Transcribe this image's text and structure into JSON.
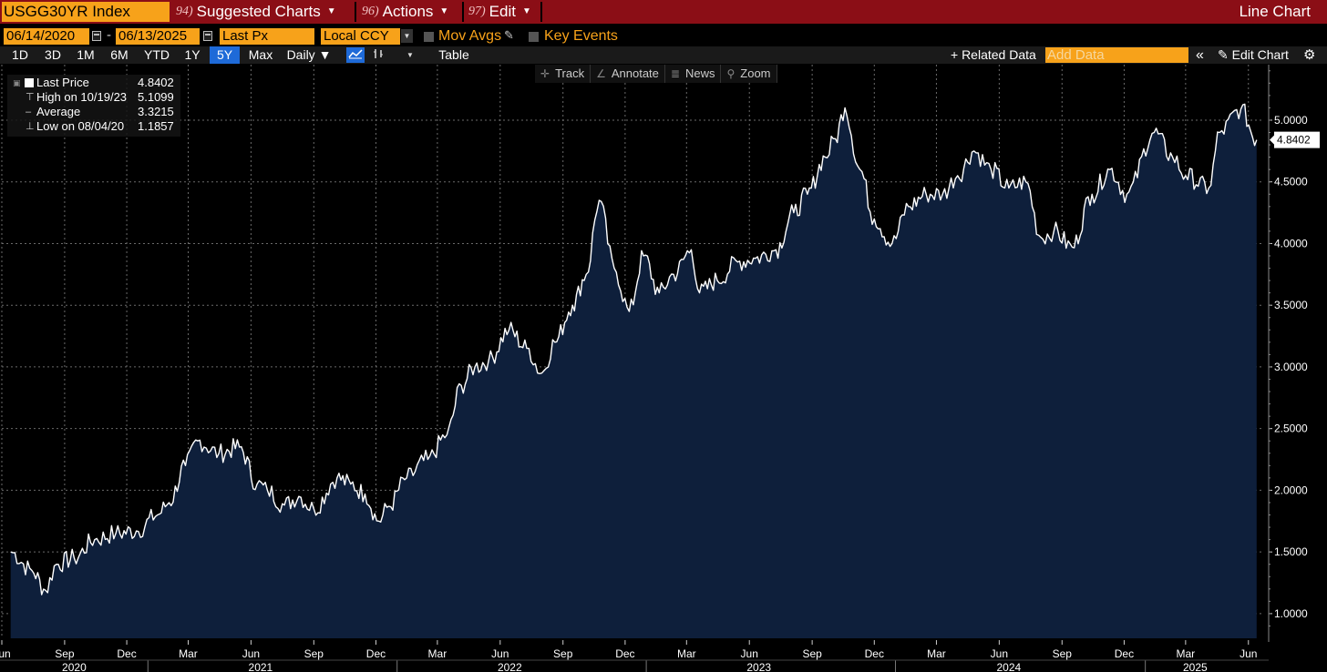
{
  "header": {
    "ticker": "USGG30YR Index",
    "menus": [
      {
        "num": "94)",
        "label": "Suggested Charts"
      },
      {
        "num": "96)",
        "label": "Actions"
      },
      {
        "num": "97)",
        "label": "Edit"
      }
    ],
    "window_title": "Line Chart"
  },
  "controls": {
    "start_date": "06/14/2020",
    "end_date": "06/13/2025",
    "date_sep": "-",
    "field": "Last Px",
    "currency": "Local CCY",
    "mov_avgs": "Mov Avgs",
    "key_events": "Key Events"
  },
  "periods": [
    "1D",
    "3D",
    "1M",
    "6M",
    "YTD",
    "1Y",
    "5Y",
    "Max"
  ],
  "active_period": "5Y",
  "frequency": "Daily ▼",
  "table_label": "Table",
  "related_data": "+ Related Data",
  "add_data_placeholder": "Add Data",
  "collapse_label": "«",
  "edit_chart": "Edit Chart",
  "chart_tools": [
    {
      "icon": "✛",
      "label": "Track"
    },
    {
      "icon": "∠",
      "label": "Annotate"
    },
    {
      "icon": "≣",
      "label": "News"
    },
    {
      "icon": "⚲",
      "label": "Zoom"
    }
  ],
  "legend": {
    "last_price_label": "Last Price",
    "last_price_value": "4.8402",
    "high_label": "High on 10/19/23",
    "high_value": "5.1099",
    "average_label": "Average",
    "average_value": "3.3215",
    "low_label": "Low on 08/04/20",
    "low_value": "1.1857"
  },
  "colors": {
    "title_bar": "#8b0e16",
    "orange": "#f7a21a",
    "area_fill": "#0e1f3b",
    "line": "#ffffff",
    "active_blue": "#1e6ad8"
  },
  "chart_data": {
    "type": "area",
    "title": "USGG30YR Index",
    "series": [
      {
        "name": "Last Price",
        "x": [
          "2020-06-14",
          "2020-07-15",
          "2020-08-04",
          "2020-08-20",
          "2020-09-15",
          "2020-10-15",
          "2020-11-15",
          "2020-12-15",
          "2021-01-15",
          "2021-02-01",
          "2021-02-25",
          "2021-03-15",
          "2021-04-15",
          "2021-05-15",
          "2021-06-10",
          "2021-06-25",
          "2021-07-20",
          "2021-08-10",
          "2021-09-01",
          "2021-10-05",
          "2021-10-25",
          "2021-11-15",
          "2021-12-05",
          "2021-12-20",
          "2022-01-15",
          "2022-02-15",
          "2022-03-15",
          "2022-04-05",
          "2022-04-25",
          "2022-05-15",
          "2022-06-14",
          "2022-07-10",
          "2022-08-01",
          "2022-08-20",
          "2022-09-15",
          "2022-10-05",
          "2022-10-24",
          "2022-11-15",
          "2022-12-07",
          "2022-12-28",
          "2023-01-20",
          "2023-02-10",
          "2023-03-08",
          "2023-03-20",
          "2023-04-15",
          "2023-05-15",
          "2023-06-10",
          "2023-07-10",
          "2023-08-05",
          "2023-08-25",
          "2023-09-20",
          "2023-10-05",
          "2023-10-19",
          "2023-11-10",
          "2023-12-01",
          "2023-12-27",
          "2024-01-20",
          "2024-02-15",
          "2024-03-10",
          "2024-04-01",
          "2024-04-25",
          "2024-05-20",
          "2024-06-15",
          "2024-07-10",
          "2024-08-01",
          "2024-08-20",
          "2024-09-16",
          "2024-10-15",
          "2024-11-10",
          "2024-12-05",
          "2025-01-14",
          "2025-02-10",
          "2025-03-01",
          "2025-04-04",
          "2025-04-20",
          "2025-05-21",
          "2025-06-13"
        ],
        "values": [
          1.5,
          1.35,
          1.19,
          1.4,
          1.45,
          1.6,
          1.65,
          1.67,
          1.8,
          1.9,
          2.2,
          2.4,
          2.3,
          2.35,
          2.05,
          2.0,
          1.88,
          1.95,
          1.85,
          2.1,
          2.05,
          1.97,
          1.75,
          1.87,
          2.1,
          2.25,
          2.45,
          2.85,
          3.0,
          3.05,
          3.3,
          3.15,
          2.95,
          3.2,
          3.5,
          3.75,
          4.35,
          3.8,
          3.45,
          3.9,
          3.6,
          3.75,
          3.95,
          3.6,
          3.7,
          3.85,
          3.88,
          3.95,
          4.25,
          4.4,
          4.7,
          4.85,
          5.1,
          4.6,
          4.2,
          4.0,
          4.3,
          4.4,
          4.4,
          4.55,
          4.75,
          4.6,
          4.45,
          4.5,
          4.05,
          4.1,
          3.97,
          4.4,
          4.6,
          4.4,
          4.9,
          4.7,
          4.55,
          4.45,
          4.9,
          5.09,
          4.84
        ]
      }
    ],
    "yaxis_ticks": [
      "1.0000",
      "1.5000",
      "2.0000",
      "2.5000",
      "3.0000",
      "3.5000",
      "4.0000",
      "4.5000",
      "5.0000"
    ],
    "ylim": [
      0.8,
      5.45
    ],
    "xlim": [
      "2020-06-01",
      "2025-06-20"
    ],
    "x_month_ticks": [
      {
        "date": "2020-06-01",
        "label": "Jun"
      },
      {
        "date": "2020-09-01",
        "label": "Sep"
      },
      {
        "date": "2020-12-01",
        "label": "Dec"
      },
      {
        "date": "2021-03-01",
        "label": "Mar"
      },
      {
        "date": "2021-06-01",
        "label": "Jun"
      },
      {
        "date": "2021-09-01",
        "label": "Sep"
      },
      {
        "date": "2021-12-01",
        "label": "Dec"
      },
      {
        "date": "2022-03-01",
        "label": "Mar"
      },
      {
        "date": "2022-06-01",
        "label": "Jun"
      },
      {
        "date": "2022-09-01",
        "label": "Sep"
      },
      {
        "date": "2022-12-01",
        "label": "Dec"
      },
      {
        "date": "2023-03-01",
        "label": "Mar"
      },
      {
        "date": "2023-06-01",
        "label": "Jun"
      },
      {
        "date": "2023-09-01",
        "label": "Sep"
      },
      {
        "date": "2023-12-01",
        "label": "Dec"
      },
      {
        "date": "2024-03-01",
        "label": "Mar"
      },
      {
        "date": "2024-06-01",
        "label": "Jun"
      },
      {
        "date": "2024-09-01",
        "label": "Sep"
      },
      {
        "date": "2024-12-01",
        "label": "Dec"
      },
      {
        "date": "2025-03-01",
        "label": "Mar"
      },
      {
        "date": "2025-06-01",
        "label": "Jun"
      }
    ],
    "x_year_labels": [
      {
        "center": "2020-09-15",
        "label": "2020"
      },
      {
        "center": "2021-06-15",
        "label": "2021"
      },
      {
        "center": "2022-06-15",
        "label": "2022"
      },
      {
        "center": "2023-06-15",
        "label": "2023"
      },
      {
        "center": "2024-06-15",
        "label": "2024"
      },
      {
        "center": "2025-03-15",
        "label": "2025"
      }
    ],
    "year_boundaries": [
      "2021-01-01",
      "2022-01-01",
      "2023-01-01",
      "2024-01-01",
      "2025-01-01"
    ],
    "last_value_label": "4.8402",
    "grid": true
  }
}
